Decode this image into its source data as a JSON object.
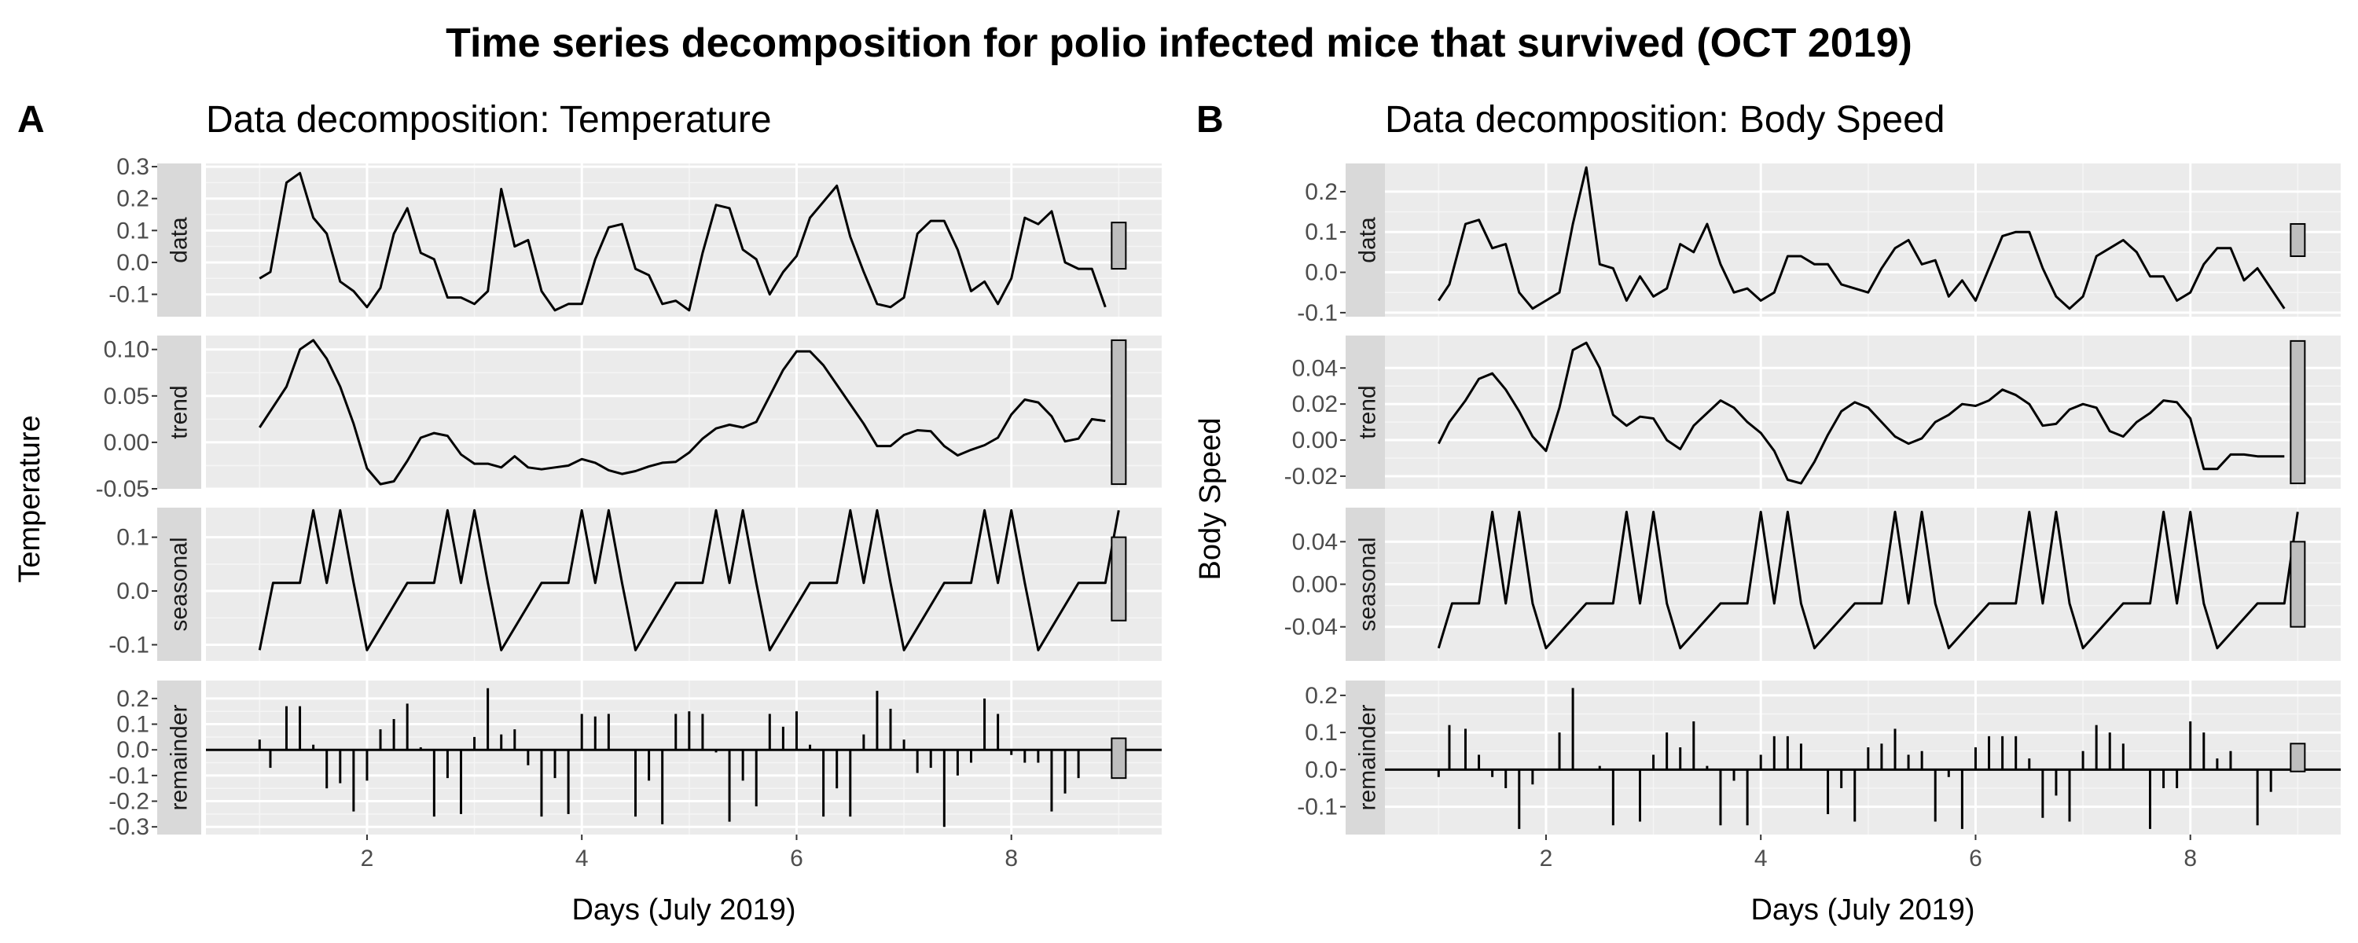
{
  "figure": {
    "title": "Time series decomposition for polio infected mice that survived (OCT 2019)"
  },
  "chart_data": [
    {
      "type": "line",
      "panel_letter": "A",
      "title": "Data decomposition: Temperature",
      "xlabel": "Days (July 2019)",
      "ylabel": "Temperature",
      "xlim": [
        0.5,
        9.4
      ],
      "x_ticks": [
        2,
        4,
        6,
        8
      ],
      "grid": true,
      "facets": [
        {
          "label": "data",
          "ylim": [
            -0.17,
            0.31
          ],
          "y_ticks": [
            -0.1,
            0.0,
            0.1,
            0.2,
            0.3
          ],
          "y_tick_labels": [
            "-0.1",
            "0.0",
            "0.1",
            "0.2",
            "0.3"
          ],
          "scale_bar": [
            0.125,
            -0.02
          ],
          "x": [
            1.0,
            1.1,
            1.25,
            1.375,
            1.5,
            1.625,
            1.75,
            1.875,
            2.0,
            2.125,
            2.25,
            2.375,
            2.5,
            2.625,
            2.75,
            2.875,
            3.0,
            3.125,
            3.25,
            3.375,
            3.5,
            3.625,
            3.75,
            3.875,
            4.0,
            4.125,
            4.25,
            4.375,
            4.5,
            4.625,
            4.75,
            4.875,
            5.0,
            5.125,
            5.25,
            5.375,
            5.5,
            5.625,
            5.75,
            5.875,
            6.0,
            6.125,
            6.25,
            6.375,
            6.5,
            6.625,
            6.75,
            6.875,
            7.0,
            7.125,
            7.25,
            7.375,
            7.5,
            7.625,
            7.75,
            7.875,
            8.0,
            8.125,
            8.25,
            8.375,
            8.5,
            8.625,
            8.75,
            8.875
          ],
          "y": [
            -0.05,
            -0.03,
            0.25,
            0.28,
            0.14,
            0.09,
            -0.06,
            -0.09,
            -0.14,
            -0.08,
            0.09,
            0.17,
            0.03,
            0.01,
            -0.11,
            -0.11,
            -0.13,
            -0.09,
            0.23,
            0.05,
            0.07,
            -0.09,
            -0.15,
            -0.13,
            -0.13,
            0.01,
            0.11,
            0.12,
            -0.02,
            -0.04,
            -0.13,
            -0.12,
            -0.15,
            0.03,
            0.18,
            0.17,
            0.04,
            0.01,
            -0.1,
            -0.03,
            0.02,
            0.14,
            0.19,
            0.24,
            0.08,
            -0.03,
            -0.13,
            -0.14,
            -0.11,
            0.09,
            0.13,
            0.13,
            0.04,
            -0.09,
            -0.06,
            -0.13,
            -0.05,
            0.14,
            0.12,
            0.16,
            0.0,
            -0.02,
            -0.02,
            -0.14
          ]
        },
        {
          "label": "trend",
          "ylim": [
            -0.05,
            0.115
          ],
          "y_ticks": [
            -0.05,
            0.0,
            0.05,
            0.1
          ],
          "y_tick_labels": [
            "-0.05",
            "0.00",
            "0.05",
            "0.10"
          ],
          "scale_bar": [
            0.11,
            -0.045
          ],
          "x": [
            1.0,
            1.25,
            1.375,
            1.5,
            1.625,
            1.75,
            1.875,
            2.0,
            2.125,
            2.25,
            2.375,
            2.5,
            2.625,
            2.75,
            2.875,
            3.0,
            3.125,
            3.25,
            3.375,
            3.5,
            3.625,
            3.75,
            3.875,
            4.0,
            4.125,
            4.25,
            4.375,
            4.5,
            4.625,
            4.75,
            4.875,
            5.0,
            5.125,
            5.25,
            5.375,
            5.5,
            5.625,
            5.75,
            5.875,
            6.0,
            6.125,
            6.25,
            6.375,
            6.5,
            6.625,
            6.75,
            6.875,
            7.0,
            7.125,
            7.25,
            7.375,
            7.5,
            7.625,
            7.75,
            7.875,
            8.0,
            8.125,
            8.25,
            8.375,
            8.5,
            8.625,
            8.75,
            8.875
          ],
          "y": [
            0.016,
            0.06,
            0.1,
            0.11,
            0.09,
            0.06,
            0.02,
            -0.028,
            -0.045,
            -0.042,
            -0.02,
            0.005,
            0.01,
            0.007,
            -0.013,
            -0.023,
            -0.023,
            -0.027,
            -0.015,
            -0.027,
            -0.029,
            -0.027,
            -0.025,
            -0.018,
            -0.022,
            -0.03,
            -0.034,
            -0.031,
            -0.026,
            -0.022,
            -0.021,
            -0.011,
            0.004,
            0.015,
            0.019,
            0.016,
            0.022,
            0.05,
            0.078,
            0.098,
            0.098,
            0.083,
            0.062,
            0.041,
            0.02,
            -0.004,
            -0.004,
            0.008,
            0.013,
            0.012,
            -0.004,
            -0.014,
            -0.008,
            -0.003,
            0.005,
            0.03,
            0.046,
            0.043,
            0.028,
            0.001,
            0.004,
            0.025,
            0.023
          ]
        },
        {
          "label": "seasonal",
          "ylim": [
            -0.13,
            0.155
          ],
          "y_ticks": [
            -0.1,
            0.0,
            0.1
          ],
          "y_tick_labels": [
            "-0.1",
            "0.0",
            "0.1"
          ],
          "scale_bar": [
            0.1,
            -0.055
          ],
          "period": 1.25,
          "pattern_x_offset": [
            0,
            0.125,
            0.375,
            0.5,
            0.625,
            0.75,
            0.875,
            1.0
          ],
          "pattern_y": [
            -0.11,
            0.015,
            0.015,
            0.15,
            0.015,
            0.15,
            0.015,
            -0.11
          ]
        },
        {
          "label": "remainder",
          "ylim": [
            -0.33,
            0.27
          ],
          "y_ticks": [
            -0.3,
            -0.2,
            -0.1,
            0.0,
            0.1,
            0.2
          ],
          "y_tick_labels": [
            "-0.3",
            "-0.2",
            "-0.1",
            "0.0",
            "0.1",
            "0.2"
          ],
          "scale_bar": [
            0.045,
            -0.11
          ],
          "x": [
            1.0,
            1.1,
            1.25,
            1.375,
            1.5,
            1.625,
            1.75,
            1.875,
            2.0,
            2.125,
            2.25,
            2.375,
            2.5,
            2.625,
            2.75,
            2.875,
            3.0,
            3.125,
            3.25,
            3.375,
            3.5,
            3.625,
            3.75,
            3.875,
            4.0,
            4.125,
            4.25,
            4.375,
            4.5,
            4.625,
            4.75,
            4.875,
            5.0,
            5.125,
            5.25,
            5.375,
            5.5,
            5.625,
            5.75,
            5.875,
            6.0,
            6.125,
            6.25,
            6.375,
            6.5,
            6.625,
            6.75,
            6.875,
            7.0,
            7.125,
            7.25,
            7.375,
            7.5,
            7.625,
            7.75,
            7.875,
            8.0,
            8.125,
            8.25,
            8.375,
            8.5,
            8.625,
            8.75,
            8.875
          ],
          "y": [
            0.04,
            -0.07,
            0.17,
            0.17,
            0.02,
            -0.15,
            -0.13,
            -0.24,
            -0.12,
            0.08,
            0.12,
            0.18,
            0.01,
            -0.26,
            -0.11,
            -0.25,
            0.05,
            0.24,
            0.06,
            0.08,
            -0.06,
            -0.26,
            -0.11,
            -0.25,
            0.14,
            0.13,
            0.14,
            0.0,
            -0.26,
            -0.12,
            -0.29,
            0.14,
            0.15,
            0.14,
            -0.01,
            -0.28,
            -0.12,
            -0.22,
            0.14,
            0.09,
            0.15,
            0.02,
            -0.26,
            -0.15,
            -0.26,
            0.06,
            0.23,
            0.16,
            0.04,
            -0.09,
            -0.07,
            -0.3,
            -0.1,
            -0.05,
            0.2,
            0.14,
            -0.02,
            -0.05,
            -0.05,
            -0.24,
            -0.17,
            -0.11,
            0.0,
            0.0
          ]
        }
      ]
    },
    {
      "type": "line",
      "panel_letter": "B",
      "title": "Data decomposition: Body Speed",
      "xlabel": "Days (July 2019)",
      "ylabel": "Body Speed",
      "xlim": [
        0.5,
        9.4
      ],
      "x_ticks": [
        2,
        4,
        6,
        8
      ],
      "grid": true,
      "facets": [
        {
          "label": "data",
          "ylim": [
            -0.11,
            0.27
          ],
          "y_ticks": [
            -0.1,
            0.0,
            0.1,
            0.2
          ],
          "y_tick_labels": [
            "-0.1",
            "0.0",
            "0.1",
            "0.2"
          ],
          "scale_bar": [
            0.12,
            0.04
          ],
          "x": [
            1.0,
            1.1,
            1.25,
            1.375,
            1.5,
            1.625,
            1.75,
            1.875,
            2.0,
            2.125,
            2.25,
            2.375,
            2.5,
            2.625,
            2.75,
            2.875,
            3.0,
            3.125,
            3.25,
            3.375,
            3.5,
            3.625,
            3.75,
            3.875,
            4.0,
            4.125,
            4.25,
            4.375,
            4.5,
            4.625,
            4.75,
            4.875,
            5.0,
            5.125,
            5.25,
            5.375,
            5.5,
            5.625,
            5.75,
            5.875,
            6.0,
            6.125,
            6.25,
            6.375,
            6.5,
            6.625,
            6.75,
            6.875,
            7.0,
            7.125,
            7.25,
            7.375,
            7.5,
            7.625,
            7.75,
            7.875,
            8.0,
            8.125,
            8.25,
            8.375,
            8.5,
            8.625,
            8.75,
            8.875
          ],
          "y": [
            -0.07,
            -0.03,
            0.12,
            0.13,
            0.06,
            0.07,
            -0.05,
            -0.09,
            -0.07,
            -0.05,
            0.12,
            0.26,
            0.02,
            0.01,
            -0.07,
            -0.01,
            -0.06,
            -0.04,
            0.07,
            0.05,
            0.12,
            0.02,
            -0.05,
            -0.04,
            -0.07,
            -0.05,
            0.04,
            0.04,
            0.02,
            0.02,
            -0.03,
            -0.04,
            -0.05,
            0.01,
            0.06,
            0.08,
            0.02,
            0.03,
            -0.06,
            -0.02,
            -0.07,
            0.01,
            0.09,
            0.1,
            0.1,
            0.01,
            -0.06,
            -0.09,
            -0.06,
            0.04,
            0.06,
            0.08,
            0.05,
            -0.01,
            -0.01,
            -0.07,
            -0.05,
            0.02,
            0.06,
            0.06,
            -0.02,
            0.01,
            -0.04,
            -0.09
          ]
        },
        {
          "label": "trend",
          "ylim": [
            -0.027,
            0.058
          ],
          "y_ticks": [
            -0.02,
            0.0,
            0.02,
            0.04
          ],
          "y_tick_labels": [
            "-0.02",
            "0.00",
            "0.02",
            "0.04"
          ],
          "scale_bar": [
            0.055,
            -0.024
          ],
          "x": [
            1.0,
            1.1,
            1.25,
            1.375,
            1.5,
            1.625,
            1.75,
            1.875,
            2.0,
            2.125,
            2.25,
            2.375,
            2.5,
            2.625,
            2.75,
            2.875,
            3.0,
            3.125,
            3.25,
            3.375,
            3.5,
            3.625,
            3.75,
            3.875,
            4.0,
            4.125,
            4.25,
            4.375,
            4.5,
            4.625,
            4.75,
            4.875,
            5.0,
            5.125,
            5.25,
            5.375,
            5.5,
            5.625,
            5.75,
            5.875,
            6.0,
            6.125,
            6.25,
            6.375,
            6.5,
            6.625,
            6.75,
            6.875,
            7.0,
            7.125,
            7.25,
            7.375,
            7.5,
            7.625,
            7.75,
            7.875,
            8.0,
            8.125,
            8.25,
            8.375,
            8.5,
            8.625,
            8.75,
            8.875
          ],
          "y": [
            -0.002,
            0.01,
            0.022,
            0.034,
            0.037,
            0.028,
            0.016,
            0.002,
            -0.006,
            0.018,
            0.05,
            0.054,
            0.04,
            0.014,
            0.008,
            0.013,
            0.012,
            0.0,
            -0.005,
            0.008,
            0.015,
            0.022,
            0.018,
            0.01,
            0.004,
            -0.006,
            -0.022,
            -0.024,
            -0.012,
            0.003,
            0.016,
            0.021,
            0.018,
            0.01,
            0.002,
            -0.002,
            0.001,
            0.01,
            0.014,
            0.02,
            0.019,
            0.022,
            0.028,
            0.025,
            0.02,
            0.008,
            0.009,
            0.017,
            0.02,
            0.018,
            0.005,
            0.002,
            0.01,
            0.015,
            0.022,
            0.021,
            0.012,
            -0.016,
            -0.016,
            -0.008,
            -0.008,
            -0.009,
            -0.009,
            -0.009
          ]
        },
        {
          "label": "seasonal",
          "ylim": [
            -0.072,
            0.072
          ],
          "y_ticks": [
            -0.04,
            0.0,
            0.04
          ],
          "y_tick_labels": [
            "-0.04",
            "0.00",
            "0.04"
          ],
          "scale_bar": [
            0.04,
            -0.04
          ],
          "period": 1.25,
          "pattern_x_offset": [
            0,
            0.125,
            0.375,
            0.5,
            0.625,
            0.75,
            0.875,
            1.0
          ],
          "pattern_y": [
            -0.06,
            -0.018,
            -0.018,
            0.068,
            -0.018,
            0.068,
            -0.018,
            -0.06
          ]
        },
        {
          "label": "remainder",
          "ylim": [
            -0.175,
            0.24
          ],
          "y_ticks": [
            -0.1,
            0.0,
            0.1,
            0.2
          ],
          "y_tick_labels": [
            "-0.1",
            "0.0",
            "0.1",
            "0.2"
          ],
          "scale_bar": [
            0.07,
            -0.005
          ],
          "x": [
            1.0,
            1.1,
            1.25,
            1.375,
            1.5,
            1.625,
            1.75,
            1.875,
            2.0,
            2.125,
            2.25,
            2.375,
            2.5,
            2.625,
            2.75,
            2.875,
            3.0,
            3.125,
            3.25,
            3.375,
            3.5,
            3.625,
            3.75,
            3.875,
            4.0,
            4.125,
            4.25,
            4.375,
            4.5,
            4.625,
            4.75,
            4.875,
            5.0,
            5.125,
            5.25,
            5.375,
            5.5,
            5.625,
            5.75,
            5.875,
            6.0,
            6.125,
            6.25,
            6.375,
            6.5,
            6.625,
            6.75,
            6.875,
            7.0,
            7.125,
            7.25,
            7.375,
            7.5,
            7.625,
            7.75,
            7.875,
            8.0,
            8.125,
            8.25,
            8.375,
            8.5,
            8.625,
            8.75,
            8.875
          ],
          "y": [
            -0.02,
            0.12,
            0.11,
            0.04,
            -0.02,
            -0.05,
            -0.16,
            -0.04,
            0.0,
            0.1,
            0.22,
            0.0,
            0.01,
            -0.15,
            0.0,
            -0.14,
            0.04,
            0.1,
            0.06,
            0.13,
            0.01,
            -0.15,
            -0.03,
            -0.15,
            0.04,
            0.09,
            0.09,
            0.07,
            0.0,
            -0.12,
            -0.05,
            -0.14,
            0.06,
            0.07,
            0.11,
            0.04,
            0.05,
            -0.14,
            -0.02,
            -0.16,
            0.06,
            0.09,
            0.09,
            0.09,
            0.03,
            -0.13,
            -0.07,
            -0.14,
            0.05,
            0.12,
            0.1,
            0.07,
            0.0,
            -0.16,
            -0.05,
            -0.05,
            0.13,
            0.1,
            0.03,
            0.05,
            0.0,
            -0.15,
            -0.06,
            0.0
          ]
        }
      ]
    }
  ]
}
